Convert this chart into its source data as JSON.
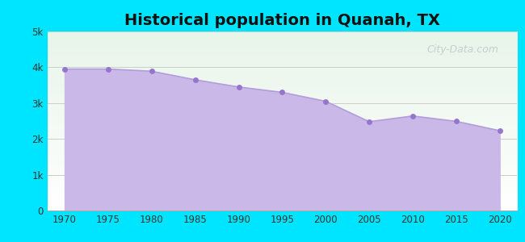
{
  "title": "Historical population in Quanah, TX",
  "years": [
    1970,
    1975,
    1980,
    1985,
    1990,
    1995,
    2000,
    2005,
    2010,
    2015,
    2020
  ],
  "population": [
    3950,
    3950,
    3890,
    3650,
    3450,
    3300,
    3050,
    2480,
    2640,
    2490,
    2230
  ],
  "line_color": "#b39ddb",
  "fill_color": "#c9b8e8",
  "fill_alpha": 1.0,
  "marker_color": "#9575cd",
  "marker_size": 5,
  "background_outer": "#00e5ff",
  "bg_color_topleft": "#e8f5e9",
  "bg_color_bottomright": "#ffffff",
  "grid_color": "#cccccc",
  "title_fontsize": 14,
  "tick_color": "#333333",
  "ylim": [
    0,
    5000
  ],
  "yticks": [
    0,
    1000,
    2000,
    3000,
    4000,
    5000
  ],
  "ytick_labels": [
    "0",
    "1k",
    "2k",
    "3k",
    "4k",
    "5k"
  ],
  "xticks": [
    1970,
    1975,
    1980,
    1985,
    1990,
    1995,
    2000,
    2005,
    2010,
    2015,
    2020
  ],
  "watermark_text": "City-Data.com",
  "watermark_color": "#90a4ae",
  "watermark_alpha": 0.45,
  "xlim_left": 1968,
  "xlim_right": 2022
}
